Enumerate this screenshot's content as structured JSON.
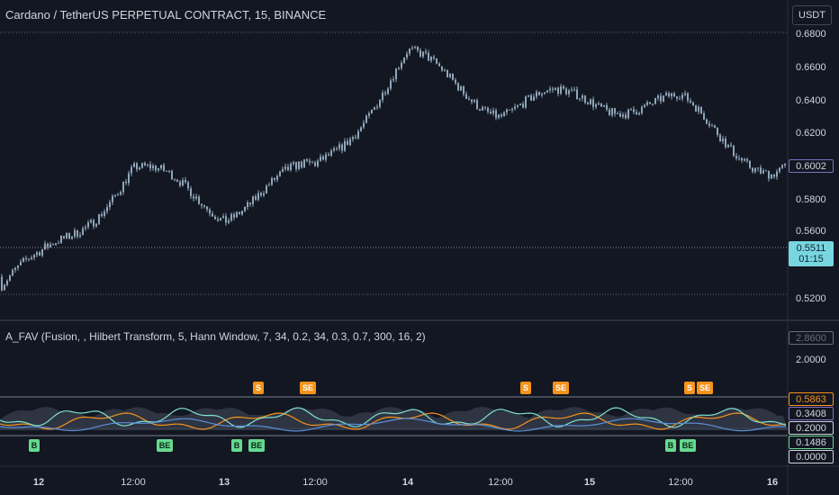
{
  "header": {
    "title": "Cardano / TetherUS PERPETUAL CONTRACT, 15, BINANCE",
    "currency_button": "USDT"
  },
  "indicator": {
    "title": "A_FAV (Fusion, , Hilbert Transform, 5, Hann Window, 7, 34, 0.2, 34, 0.3, 0.7, 300, 16, 2)"
  },
  "price_axis": {
    "ticks": [
      "0.6800",
      "0.6600",
      "0.6400",
      "0.6200",
      "0.5800",
      "0.5600",
      "0.5200"
    ],
    "last_price": "0.6002",
    "current_price": "0.5511",
    "countdown": "01:15"
  },
  "indicator_axis": {
    "ticks": [
      "2.0000"
    ],
    "top_value": "2.8600",
    "box_values": [
      "0.5863",
      "0.3408",
      "0.2000",
      "0.1486",
      "0.0000"
    ]
  },
  "signals": {
    "sell": [
      "S",
      "SE",
      "S",
      "SE",
      "S",
      "SE"
    ],
    "buy": [
      "B",
      "BE",
      "B",
      "BE",
      "B",
      "BE"
    ]
  },
  "time_axis": {
    "labels": [
      "12",
      "12:00",
      "13",
      "12:00",
      "14",
      "12:00",
      "15",
      "12:00",
      "16"
    ]
  },
  "colors": {
    "background": "#131722",
    "candle": "#8fa6b8",
    "sell_badge": "#f7931a",
    "buy_badge": "#66d98f",
    "price_box": "#78d6e0",
    "orange_line": "#f7931a",
    "cyan_line": "#7fe0d0",
    "blue_line": "#5a8fd8"
  },
  "chart_data": {
    "type": "candlestick",
    "symbol": "Cardano / TetherUS PERPETUAL CONTRACT",
    "interval": "15",
    "exchange": "BINANCE",
    "ylim": [
      0.518,
      0.686
    ],
    "key_points": [
      {
        "x": "12",
        "close": 0.54
      },
      {
        "x": "12:00",
        "close": 0.6
      },
      {
        "x": "13",
        "close": 0.575
      },
      {
        "x": "12:00",
        "close": 0.6
      },
      {
        "x": "14",
        "close": 0.67
      },
      {
        "x": "12:00",
        "close": 0.64
      },
      {
        "x": "15",
        "close": 0.645
      },
      {
        "x": "12:00",
        "close": 0.64
      },
      {
        "x": "16",
        "close": 0.6
      }
    ],
    "last_price": 0.6002,
    "current_price": 0.5511,
    "indicator": {
      "name": "A_FAV",
      "levels": [
        0.5863,
        0.3408,
        0.2,
        0.1486,
        0.0
      ],
      "series_colors": [
        "#f7931a",
        "#7fe0d0",
        "#5a8fd8"
      ]
    }
  }
}
